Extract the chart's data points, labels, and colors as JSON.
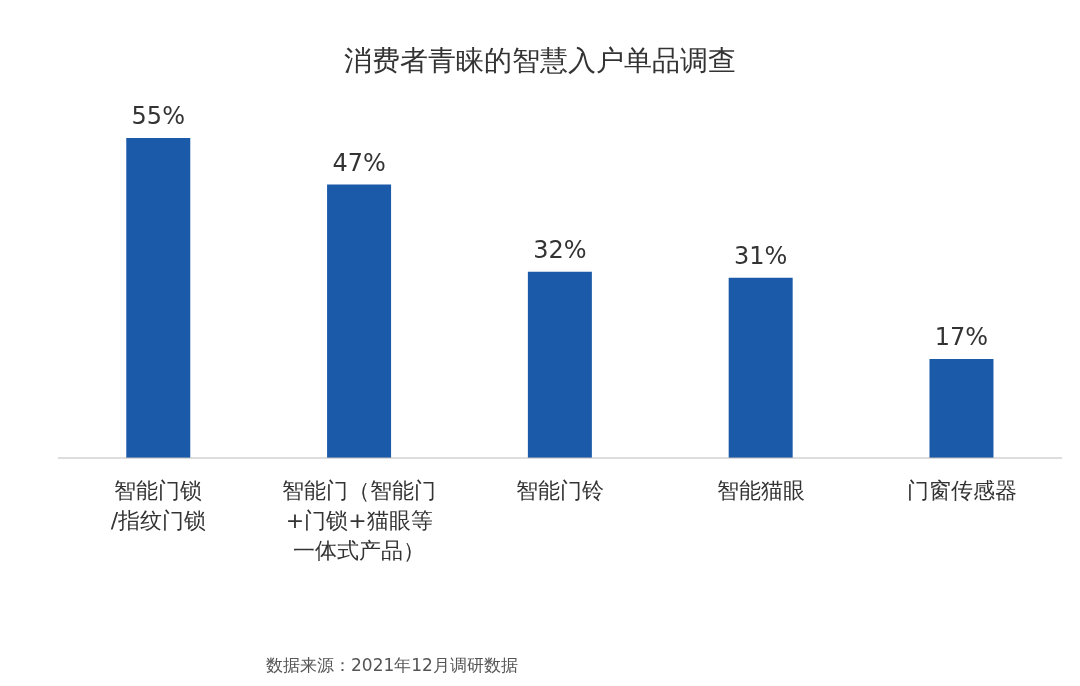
{
  "chart_data": {
    "type": "bar",
    "title": "消费者青睐的智慧入户单品调查",
    "categories": [
      "智能门锁/指纹门锁",
      "智能门（智能门+门锁+猫眼等一体式产品）",
      "智能门铃",
      "智能猫眼",
      "门窗传感器"
    ],
    "values": [
      55,
      47,
      32,
      31,
      17
    ],
    "color": "#1b59a9",
    "data_labels": true,
    "value_labels": [
      "55%",
      "47%",
      "32%",
      "31%",
      "17%"
    ],
    "annotations": [
      "数据来源：2021年12月调研数据"
    ]
  }
}
